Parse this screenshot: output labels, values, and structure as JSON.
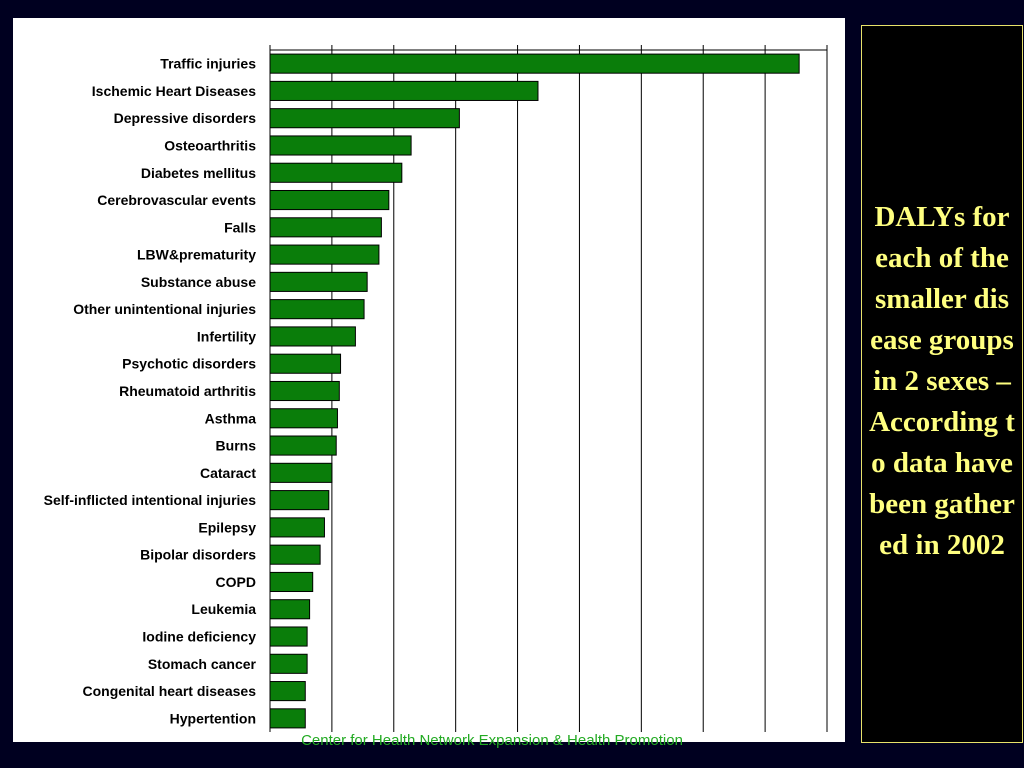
{
  "slide": {
    "title": "DALYs for each of the smaller disease groups in 2 sexes – According to data have been gathered in 2002",
    "footer": "Center for Health Network Expansion & Health Promotion"
  },
  "colors": {
    "background": "#000020",
    "bar_fill": "#0a7d0a",
    "title_text": "#ffff80",
    "footer_text": "#22aa22"
  },
  "chart_data": {
    "type": "bar",
    "orientation": "horizontal",
    "categories": [
      "Traffic injuries",
      "Ischemic Heart Diseases",
      "Depressive disorders",
      "Osteoarthritis",
      "Diabetes mellitus",
      "Cerebrovascular events",
      "Falls",
      "LBW&prematurity",
      "Substance abuse",
      "Other unintentional injuries",
      "Infertility",
      "Psychotic disorders",
      "Rheumatoid arthritis",
      "Asthma",
      "Burns",
      "Cataract",
      "Self-inflicted intentional injuries",
      "Epilepsy",
      "Bipolar disorders",
      "COPD",
      "Leukemia",
      "Iodine deficiency",
      "Stomach cancer",
      "Congenital heart diseases",
      "Hypertention"
    ],
    "values": [
      8.55,
      4.33,
      3.06,
      2.28,
      2.13,
      1.92,
      1.8,
      1.76,
      1.57,
      1.52,
      1.38,
      1.14,
      1.12,
      1.09,
      1.07,
      1.0,
      0.95,
      0.88,
      0.81,
      0.69,
      0.64,
      0.6,
      0.6,
      0.57,
      0.57
    ],
    "xlim": [
      0,
      9
    ],
    "x_gridlines": [
      1,
      2,
      3,
      4,
      5,
      6,
      7,
      8,
      9
    ],
    "grid": true,
    "legend": "none",
    "title": "",
    "xlabel": "",
    "ylabel": ""
  }
}
